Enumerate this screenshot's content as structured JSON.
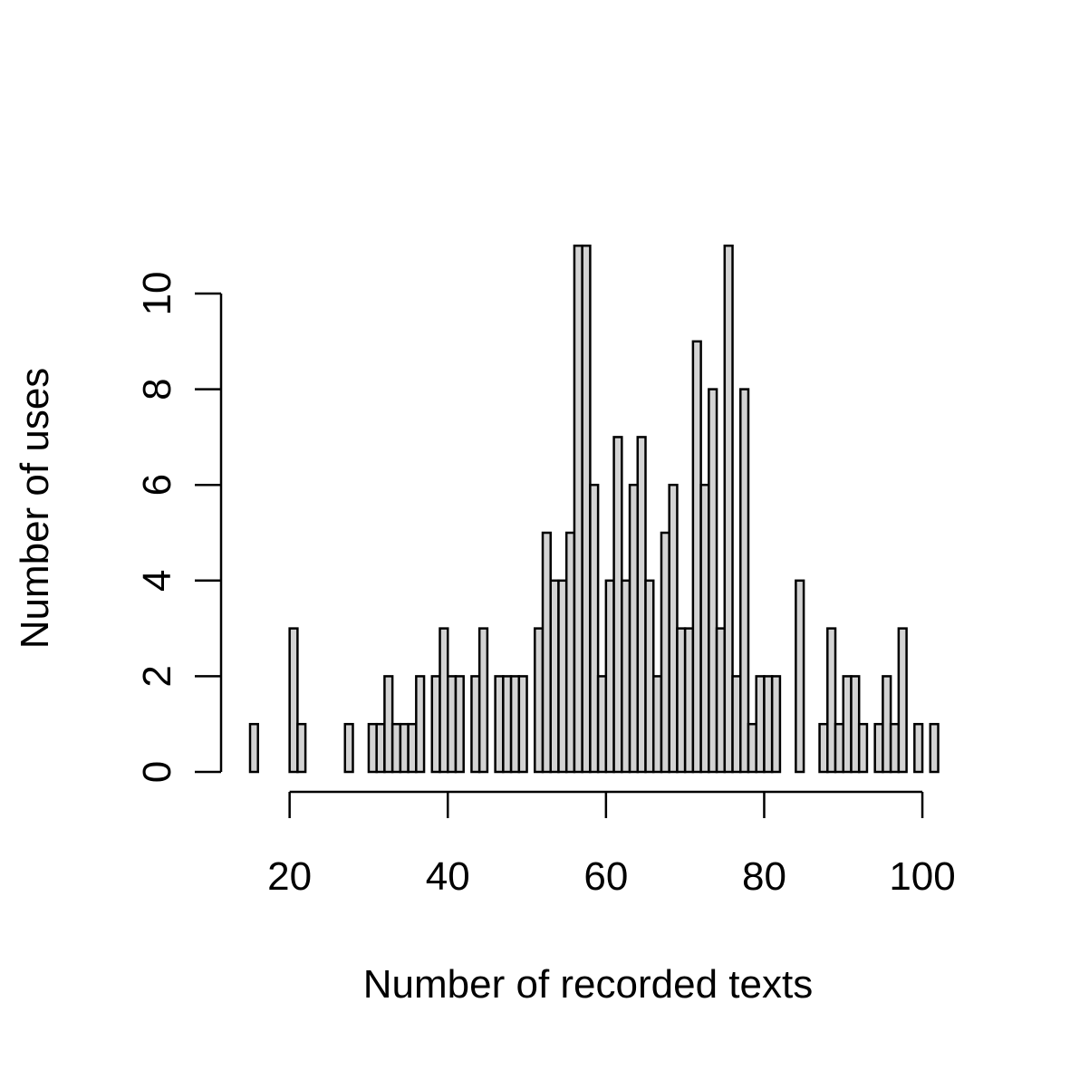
{
  "chart_data": {
    "type": "bar",
    "title": "",
    "xlabel": "Number of recorded texts",
    "ylabel": "Number of uses",
    "bin_width": 1,
    "x_start": 15,
    "xlim": [
      15,
      101
    ],
    "ylim": [
      0,
      11
    ],
    "x_ticks": [
      20,
      40,
      60,
      80,
      100
    ],
    "y_ticks": [
      0,
      2,
      4,
      6,
      8,
      10
    ],
    "values": [
      1,
      0,
      0,
      0,
      0,
      3,
      1,
      0,
      0,
      0,
      0,
      0,
      1,
      0,
      0,
      1,
      1,
      2,
      1,
      1,
      1,
      2,
      0,
      2,
      3,
      2,
      2,
      0,
      2,
      3,
      0,
      2,
      2,
      2,
      2,
      0,
      3,
      5,
      4,
      4,
      5,
      11,
      11,
      6,
      2,
      4,
      7,
      4,
      6,
      7,
      4,
      2,
      5,
      6,
      3,
      3,
      9,
      6,
      8,
      3,
      11,
      2,
      8,
      1,
      2,
      2,
      2,
      0,
      0,
      4,
      0,
      0,
      1,
      3,
      1,
      2,
      2,
      1,
      0,
      1,
      2,
      1,
      3,
      0,
      1,
      0,
      1
    ]
  }
}
